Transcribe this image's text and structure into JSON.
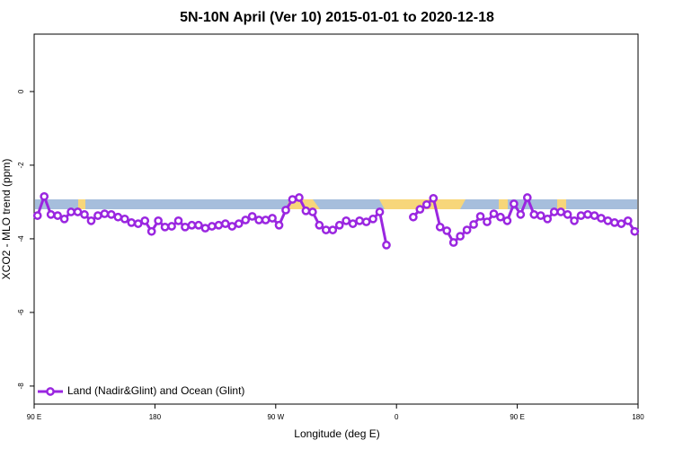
{
  "chart_data": {
    "type": "line",
    "title": "5N-10N April (Ver 10)   2015-01-01 to 2020-12-18",
    "x_label": "Longitude (deg E)",
    "y_label": "XCO2 - MLO trend (ppm)",
    "legend_position": "bottom-left",
    "xlim": [
      90,
      540
    ],
    "xticks": [
      {
        "value": 90,
        "label": "90 E"
      },
      {
        "value": 180,
        "label": "180"
      },
      {
        "value": 270,
        "label": "90 W"
      },
      {
        "value": 360,
        "label": "0"
      },
      {
        "value": 450,
        "label": "90 E"
      },
      {
        "value": 540,
        "label": "180"
      }
    ],
    "ylim": [
      -8.49,
      1.56
    ],
    "yticks": [
      0,
      -2,
      -4,
      -6,
      -8
    ],
    "x": [
      92.5,
      97.5,
      102.5,
      107.5,
      112.5,
      117.5,
      122.5,
      127.5,
      132.5,
      137.5,
      142.5,
      147.5,
      152.5,
      157.5,
      162.5,
      167.5,
      172.5,
      177.5,
      182.5,
      187.5,
      192.5,
      197.5,
      202.5,
      207.5,
      212.5,
      217.5,
      222.5,
      227.5,
      232.5,
      237.5,
      242.5,
      247.5,
      252.5,
      257.5,
      262.5,
      267.5,
      272.5,
      277.5,
      282.5,
      287.5,
      292.5,
      297.5,
      302.5,
      307.5,
      312.5,
      317.5,
      322.5,
      327.5,
      332.5,
      337.5,
      342.5,
      347.5,
      352.5,
      357.5,
      362.5,
      367.5,
      372.5,
      377.5,
      382.5,
      387.5,
      392.5,
      397.5,
      402.5,
      407.5,
      412.5,
      417.5,
      422.5,
      427.5,
      432.5,
      437.5,
      442.5,
      447.5,
      452.5,
      457.5,
      462.5,
      467.5,
      472.5,
      477.5,
      482.5,
      487.5,
      492.5,
      497.5,
      502.5,
      507.5,
      512.5,
      517.5,
      522.5,
      527.5,
      532.5,
      537.5
    ],
    "series": [
      {
        "name": "Land (Nadir&Glint) and Ocean (Glint)",
        "color": "#9a26e0",
        "values": [
          -3.37,
          -2.85,
          -3.34,
          -3.37,
          -3.46,
          -3.27,
          -3.27,
          -3.34,
          -3.51,
          -3.37,
          -3.32,
          -3.34,
          -3.41,
          -3.46,
          -3.56,
          -3.59,
          -3.51,
          -3.8,
          -3.51,
          -3.68,
          -3.66,
          -3.51,
          -3.68,
          -3.63,
          -3.63,
          -3.71,
          -3.66,
          -3.63,
          -3.59,
          -3.66,
          -3.59,
          -3.49,
          -3.39,
          -3.49,
          -3.49,
          -3.44,
          -3.63,
          -3.22,
          -2.93,
          -2.88,
          -3.24,
          -3.27,
          -3.63,
          -3.76,
          -3.76,
          -3.63,
          -3.51,
          -3.59,
          -3.51,
          -3.54,
          -3.46,
          -3.27,
          -4.17,
          null,
          null,
          null,
          -3.41,
          -3.2,
          -3.07,
          -2.9,
          -3.68,
          -3.78,
          -4.1,
          -3.93,
          -3.76,
          -3.61,
          -3.39,
          -3.54,
          -3.32,
          -3.41,
          -3.51,
          -3.05,
          -3.34,
          -2.88,
          -3.34,
          -3.37,
          -3.46,
          -3.27,
          -3.27,
          -3.34,
          -3.51,
          -3.37,
          -3.34,
          -3.37,
          -3.44,
          -3.51,
          -3.56,
          -3.59,
          -3.51,
          -3.8
        ]
      }
    ]
  }
}
